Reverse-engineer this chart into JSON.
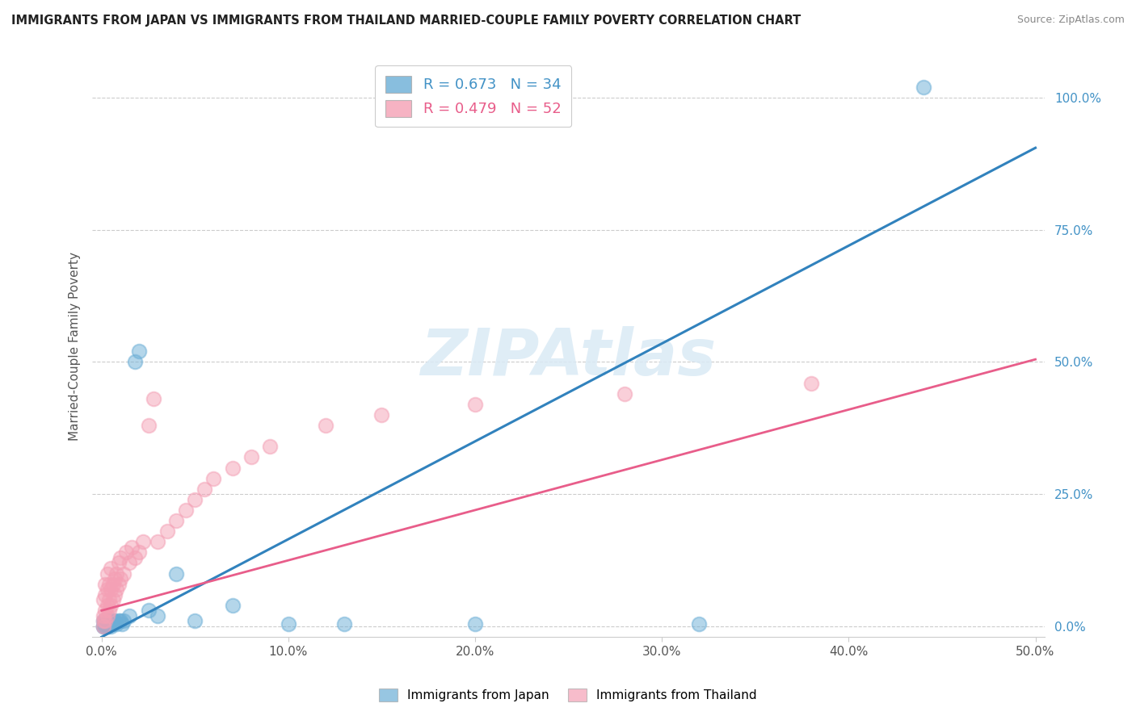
{
  "title": "IMMIGRANTS FROM JAPAN VS IMMIGRANTS FROM THAILAND MARRIED-COUPLE FAMILY POVERTY CORRELATION CHART",
  "source": "Source: ZipAtlas.com",
  "ylabel": "Married-Couple Family Poverty",
  "xlim": [
    -0.005,
    0.505
  ],
  "ylim": [
    -0.02,
    1.08
  ],
  "xticks": [
    0.0,
    0.1,
    0.2,
    0.3,
    0.4,
    0.5
  ],
  "xtick_labels": [
    "0.0%",
    "10.0%",
    "20.0%",
    "30.0%",
    "40.0%",
    "50.0%"
  ],
  "yticks": [
    0.0,
    0.25,
    0.5,
    0.75,
    1.0
  ],
  "ytick_labels": [
    "0.0%",
    "25.0%",
    "50.0%",
    "75.0%",
    "100.0%"
  ],
  "japan_color": "#6baed6",
  "thailand_color": "#f4a0b5",
  "japan_line_color": "#3182bd",
  "thailand_line_color": "#e85d8a",
  "japan_R": 0.673,
  "japan_N": 34,
  "thailand_R": 0.479,
  "thailand_N": 52,
  "japan_label": "Immigrants from Japan",
  "thailand_label": "Immigrants from Thailand",
  "watermark": "ZIPAtlas",
  "background_color": "#ffffff",
  "grid_color": "#cccccc",
  "japan_line_intercept": -0.02,
  "japan_line_slope": 1.85,
  "thailand_line_intercept": 0.03,
  "thailand_line_slope": 0.95,
  "japan_x": [
    0.001,
    0.001,
    0.001,
    0.002,
    0.002,
    0.002,
    0.003,
    0.003,
    0.003,
    0.004,
    0.004,
    0.005,
    0.005,
    0.006,
    0.006,
    0.007,
    0.008,
    0.009,
    0.01,
    0.011,
    0.012,
    0.015,
    0.018,
    0.02,
    0.025,
    0.03,
    0.04,
    0.05,
    0.07,
    0.1,
    0.13,
    0.2,
    0.32,
    0.44
  ],
  "japan_y": [
    0.0,
    0.0,
    0.01,
    0.0,
    0.005,
    0.01,
    0.0,
    0.005,
    0.01,
    0.005,
    0.01,
    0.0,
    0.005,
    0.01,
    0.005,
    0.01,
    0.005,
    0.01,
    0.01,
    0.005,
    0.01,
    0.02,
    0.5,
    0.52,
    0.03,
    0.02,
    0.1,
    0.01,
    0.04,
    0.005,
    0.005,
    0.005,
    0.005,
    1.02
  ],
  "thailand_x": [
    0.001,
    0.001,
    0.001,
    0.001,
    0.002,
    0.002,
    0.002,
    0.002,
    0.003,
    0.003,
    0.003,
    0.003,
    0.004,
    0.004,
    0.004,
    0.005,
    0.005,
    0.005,
    0.006,
    0.006,
    0.007,
    0.007,
    0.008,
    0.008,
    0.009,
    0.009,
    0.01,
    0.01,
    0.012,
    0.013,
    0.015,
    0.016,
    0.018,
    0.02,
    0.022,
    0.025,
    0.028,
    0.03,
    0.035,
    0.04,
    0.045,
    0.05,
    0.055,
    0.06,
    0.07,
    0.08,
    0.09,
    0.12,
    0.15,
    0.2,
    0.28,
    0.38
  ],
  "thailand_y": [
    0.0,
    0.01,
    0.02,
    0.05,
    0.01,
    0.03,
    0.06,
    0.08,
    0.02,
    0.04,
    0.07,
    0.1,
    0.03,
    0.05,
    0.08,
    0.04,
    0.07,
    0.11,
    0.05,
    0.08,
    0.06,
    0.09,
    0.07,
    0.1,
    0.08,
    0.12,
    0.09,
    0.13,
    0.1,
    0.14,
    0.12,
    0.15,
    0.13,
    0.14,
    0.16,
    0.38,
    0.43,
    0.16,
    0.18,
    0.2,
    0.22,
    0.24,
    0.26,
    0.28,
    0.3,
    0.32,
    0.34,
    0.38,
    0.4,
    0.42,
    0.44,
    0.46
  ]
}
